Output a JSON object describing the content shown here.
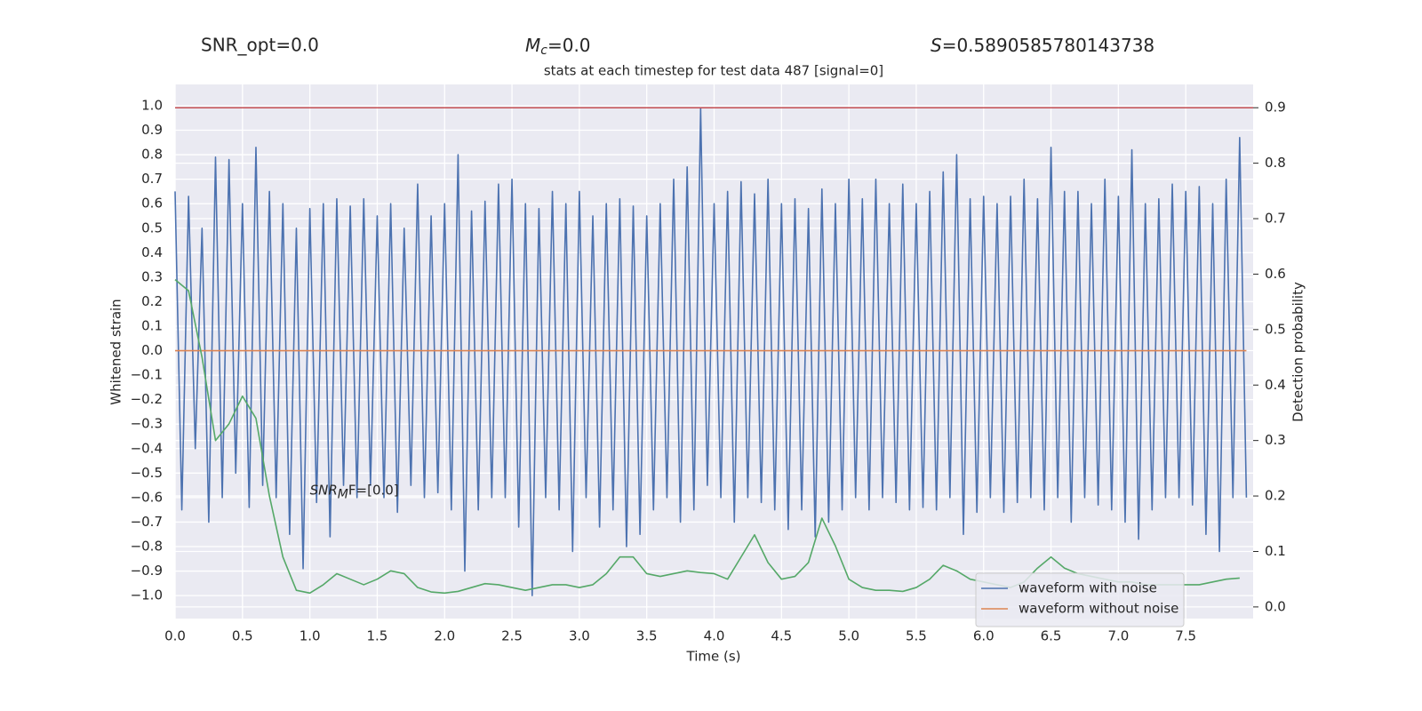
{
  "chart_data": {
    "type": "line",
    "header": {
      "snr_opt": "SNR_opt=0.0",
      "mc": {
        "base": "M",
        "sub": "c",
        "rest": "=0.0"
      },
      "s": {
        "base": "S",
        "rest": "=0.5890585780143738"
      }
    },
    "title": "stats at each timestep for test data 487 [signal=0]",
    "annotation": {
      "base": "SNR",
      "sub": "M",
      "rest": "F=[0.0]",
      "x": 1.0,
      "y": -0.57
    },
    "xlabel": "Time (s)",
    "ylabel": "Whitened strain",
    "y2label": "Detection probability",
    "xlim": [
      0,
      8
    ],
    "ylim": [
      -1.094,
      1.087
    ],
    "y2lim": [
      -0.021,
      0.942
    ],
    "xticks": [
      {
        "value": 0,
        "label": "0.0"
      },
      0.5,
      {
        "value": 1,
        "label": "1.0"
      },
      1.5,
      {
        "value": 2,
        "label": "2.0"
      },
      2.5,
      {
        "value": 3,
        "label": "3.0"
      },
      3.5,
      {
        "value": 4,
        "label": "4.0"
      },
      4.5,
      {
        "value": 5,
        "label": "5.0"
      },
      5.5,
      {
        "value": 6,
        "label": "6.0"
      },
      6.5,
      {
        "value": 7,
        "label": "7.0"
      },
      7.5
    ],
    "yticks": [
      {
        "value": -1,
        "label": "−1.0"
      },
      {
        "value": -0.9,
        "label": "−0.9"
      },
      {
        "value": -0.8,
        "label": "−0.8"
      },
      {
        "value": -0.7,
        "label": "−0.7"
      },
      {
        "value": -0.6,
        "label": "−0.6"
      },
      {
        "value": -0.5,
        "label": "−0.5"
      },
      {
        "value": -0.4,
        "label": "−0.4"
      },
      {
        "value": -0.3,
        "label": "−0.3"
      },
      {
        "value": -0.2,
        "label": "−0.2"
      },
      {
        "value": -0.1,
        "label": "−0.1"
      },
      {
        "value": 0,
        "label": "0.0"
      },
      0.1,
      0.2,
      0.3,
      0.4,
      0.5,
      0.6,
      0.7,
      0.8,
      0.9,
      {
        "value": 1,
        "label": "1.0"
      }
    ],
    "y2ticks": [
      {
        "value": 0,
        "label": "0.0"
      },
      0.1,
      0.2,
      0.3,
      0.4,
      0.5,
      0.6,
      0.7,
      0.8,
      0.9
    ],
    "grid": true,
    "legend": "lower right",
    "hline": {
      "value": 0.9,
      "axis": "y2",
      "color": "#c44e52"
    },
    "series": [
      {
        "name": "waveform with noise",
        "color": "#4c72b0",
        "in_legend": true,
        "x": [
          0,
          0.05,
          0.1,
          0.15,
          0.2,
          0.25,
          0.3,
          0.35,
          0.4,
          0.45,
          0.5,
          0.55,
          0.6,
          0.65,
          0.7,
          0.75,
          0.8,
          0.85,
          0.9,
          0.95,
          1,
          1.05,
          1.1,
          1.15,
          1.2,
          1.25,
          1.3,
          1.35,
          1.4,
          1.45,
          1.5,
          1.55,
          1.6,
          1.65,
          1.7,
          1.75,
          1.8,
          1.85,
          1.9,
          1.95,
          2,
          2.05,
          2.1,
          2.15,
          2.2,
          2.25,
          2.3,
          2.35,
          2.4,
          2.45,
          2.5,
          2.55,
          2.6,
          2.65,
          2.7,
          2.75,
          2.8,
          2.85,
          2.9,
          2.95,
          3,
          3.05,
          3.1,
          3.15,
          3.2,
          3.25,
          3.3,
          3.35,
          3.4,
          3.45,
          3.5,
          3.55,
          3.6,
          3.65,
          3.7,
          3.75,
          3.8,
          3.85,
          3.9,
          3.95,
          4,
          4.05,
          4.1,
          4.15,
          4.2,
          4.25,
          4.3,
          4.35,
          4.4,
          4.45,
          4.5,
          4.55,
          4.6,
          4.65,
          4.7,
          4.75,
          4.8,
          4.85,
          4.9,
          4.95,
          5,
          5.05,
          5.1,
          5.15,
          5.2,
          5.25,
          5.3,
          5.35,
          5.4,
          5.45,
          5.5,
          5.55,
          5.6,
          5.65,
          5.7,
          5.75,
          5.8,
          5.85,
          5.9,
          5.95,
          6,
          6.05,
          6.1,
          6.15,
          6.2,
          6.25,
          6.3,
          6.35,
          6.4,
          6.45,
          6.5,
          6.55,
          6.6,
          6.65,
          6.7,
          6.75,
          6.8,
          6.85,
          6.9,
          6.95,
          7,
          7.05,
          7.1,
          7.15,
          7.2,
          7.25,
          7.3,
          7.35,
          7.4,
          7.45,
          7.5,
          7.55,
          7.6,
          7.65,
          7.7,
          7.75,
          7.8,
          7.85,
          7.9,
          7.95
        ],
        "values": [
          0.65,
          -0.65,
          0.63,
          -0.4,
          0.5,
          -0.7,
          0.79,
          -0.6,
          0.78,
          -0.5,
          0.6,
          -0.64,
          0.83,
          -0.55,
          0.65,
          -0.6,
          0.6,
          -0.75,
          0.5,
          -0.89,
          0.58,
          -0.62,
          0.6,
          -0.76,
          0.62,
          -0.55,
          0.59,
          -0.6,
          0.62,
          -0.55,
          0.55,
          -0.6,
          0.6,
          -0.66,
          0.5,
          -0.55,
          0.68,
          -0.6,
          0.55,
          -0.58,
          0.6,
          -0.65,
          0.8,
          -0.9,
          0.57,
          -0.65,
          0.61,
          -0.6,
          0.68,
          -0.6,
          0.7,
          -0.72,
          0.6,
          -1.0,
          0.58,
          -0.6,
          0.65,
          -0.65,
          0.6,
          -0.82,
          0.65,
          -0.6,
          0.55,
          -0.72,
          0.6,
          -0.65,
          0.62,
          -0.8,
          0.59,
          -0.75,
          0.55,
          -0.65,
          0.6,
          -0.6,
          0.7,
          -0.7,
          0.75,
          -0.65,
          0.99,
          -0.55,
          0.6,
          -0.6,
          0.65,
          -0.7,
          0.69,
          -0.6,
          0.64,
          -0.62,
          0.7,
          -0.65,
          0.6,
          -0.73,
          0.62,
          -0.65,
          0.58,
          -0.76,
          0.66,
          -0.7,
          0.6,
          -0.65,
          0.7,
          -0.6,
          0.62,
          -0.65,
          0.7,
          -0.6,
          0.6,
          -0.62,
          0.68,
          -0.65,
          0.6,
          -0.64,
          0.65,
          -0.65,
          0.73,
          -0.6,
          0.8,
          -0.75,
          0.62,
          -0.66,
          0.63,
          -0.6,
          0.6,
          -0.66,
          0.63,
          -0.62,
          0.7,
          -0.6,
          0.62,
          -0.65,
          0.83,
          -0.6,
          0.65,
          -0.7,
          0.65,
          -0.6,
          0.6,
          -0.63,
          0.7,
          -0.65,
          0.63,
          -0.7,
          0.82,
          -0.77,
          0.6,
          -0.65,
          0.62,
          -0.6,
          0.68,
          -0.6,
          0.65,
          -0.63,
          0.67,
          -0.75,
          0.6,
          -0.82,
          0.7,
          -0.6,
          0.87,
          -0.6
        ]
      },
      {
        "name": "waveform without noise",
        "color": "#dd8452",
        "in_legend": true,
        "x": [
          0,
          7.95
        ],
        "values": [
          0,
          0
        ]
      },
      {
        "name": null,
        "color": "#55a868",
        "axis": "y2",
        "in_legend": false,
        "x": [
          0,
          0.1,
          0.2,
          0.3,
          0.4,
          0.5,
          0.6,
          0.7,
          0.8,
          0.9,
          1,
          1.1,
          1.2,
          1.3,
          1.4,
          1.5,
          1.6,
          1.7,
          1.8,
          1.9,
          2,
          2.1,
          2.2,
          2.3,
          2.4,
          2.5,
          2.6,
          2.7,
          2.8,
          2.9,
          3,
          3.1,
          3.2,
          3.3,
          3.4,
          3.5,
          3.6,
          3.7,
          3.8,
          3.9,
          4,
          4.1,
          4.2,
          4.3,
          4.4,
          4.5,
          4.6,
          4.7,
          4.8,
          4.9,
          5,
          5.1,
          5.2,
          5.3,
          5.4,
          5.5,
          5.6,
          5.7,
          5.8,
          5.9,
          6,
          6.1,
          6.2,
          6.3,
          6.4,
          6.5,
          6.6,
          6.7,
          6.8,
          6.9,
          7,
          7.1,
          7.2,
          7.3,
          7.4,
          7.5,
          7.6,
          7.7,
          7.8,
          7.9
        ],
        "values": [
          0.59,
          0.57,
          0.45,
          0.3,
          0.33,
          0.38,
          0.34,
          0.2,
          0.09,
          0.03,
          0.025,
          0.04,
          0.06,
          0.05,
          0.04,
          0.05,
          0.065,
          0.06,
          0.035,
          0.027,
          0.025,
          0.028,
          0.035,
          0.042,
          0.04,
          0.035,
          0.03,
          0.035,
          0.04,
          0.04,
          0.035,
          0.04,
          0.06,
          0.09,
          0.09,
          0.06,
          0.055,
          0.06,
          0.065,
          0.062,
          0.06,
          0.05,
          0.09,
          0.13,
          0.08,
          0.05,
          0.055,
          0.08,
          0.16,
          0.11,
          0.05,
          0.035,
          0.03,
          0.03,
          0.028,
          0.035,
          0.05,
          0.075,
          0.065,
          0.05,
          0.045,
          0.04,
          0.035,
          0.045,
          0.07,
          0.09,
          0.07,
          0.06,
          0.055,
          0.05,
          0.045,
          0.045,
          0.04,
          0.04,
          0.04,
          0.04,
          0.04,
          0.045,
          0.05,
          0.052
        ]
      }
    ]
  }
}
